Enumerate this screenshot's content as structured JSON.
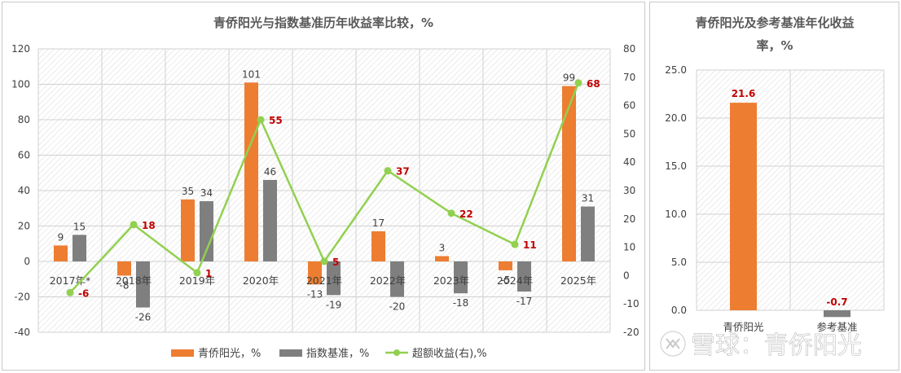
{
  "colors": {
    "fund": "#ED7D31",
    "benchmark": "#7F7F7F",
    "excess": "#92D050",
    "excess_label": "#C00000"
  },
  "watermark": "雪球：青侨阳光",
  "chart_data": [
    {
      "type": "bar",
      "title": "青侨阳光与指数基准历年收益率比较，%",
      "categories": [
        "2017年*",
        "2018年",
        "2019年",
        "2020年",
        "2021年",
        "2022年",
        "2023年",
        "2024年",
        "2025年"
      ],
      "series": [
        {
          "name": "青侨阳光，%",
          "type": "bar",
          "axis": "left",
          "values": [
            9,
            -8,
            35,
            101,
            -13,
            17,
            3,
            -5,
            99
          ]
        },
        {
          "name": "指数基准，%",
          "type": "bar",
          "axis": "left",
          "values": [
            15,
            -26,
            34,
            46,
            -19,
            -20,
            -18,
            -17,
            31
          ]
        },
        {
          "name": "超额收益(右),%",
          "type": "line",
          "axis": "right",
          "values": [
            -6,
            18,
            1,
            55,
            5,
            37,
            22,
            11,
            68
          ]
        }
      ],
      "left_axis": {
        "ylim": [
          -40,
          120
        ],
        "ticks": [
          -40,
          -20,
          0,
          20,
          40,
          60,
          80,
          100,
          120
        ]
      },
      "right_axis": {
        "ylim": [
          -20,
          80
        ],
        "ticks": [
          -20,
          -10,
          0,
          10,
          20,
          30,
          40,
          50,
          60,
          70,
          80
        ]
      },
      "legend": "bottom",
      "grid": true
    },
    {
      "type": "bar",
      "title_lines": [
        "青侨阳光及参考基准年化收益",
        "率，%"
      ],
      "categories": [
        "青侨阳光",
        "参考基准"
      ],
      "values": [
        21.6,
        -0.7
      ],
      "value_labels": [
        "21.6",
        "-0.7"
      ],
      "ylim": [
        0,
        25
      ],
      "ticks": [
        "0.0",
        "5.0",
        "10.0",
        "15.0",
        "20.0",
        "25.0"
      ],
      "tick_values": [
        0,
        5,
        10,
        15,
        20,
        25
      ],
      "grid": true
    }
  ]
}
